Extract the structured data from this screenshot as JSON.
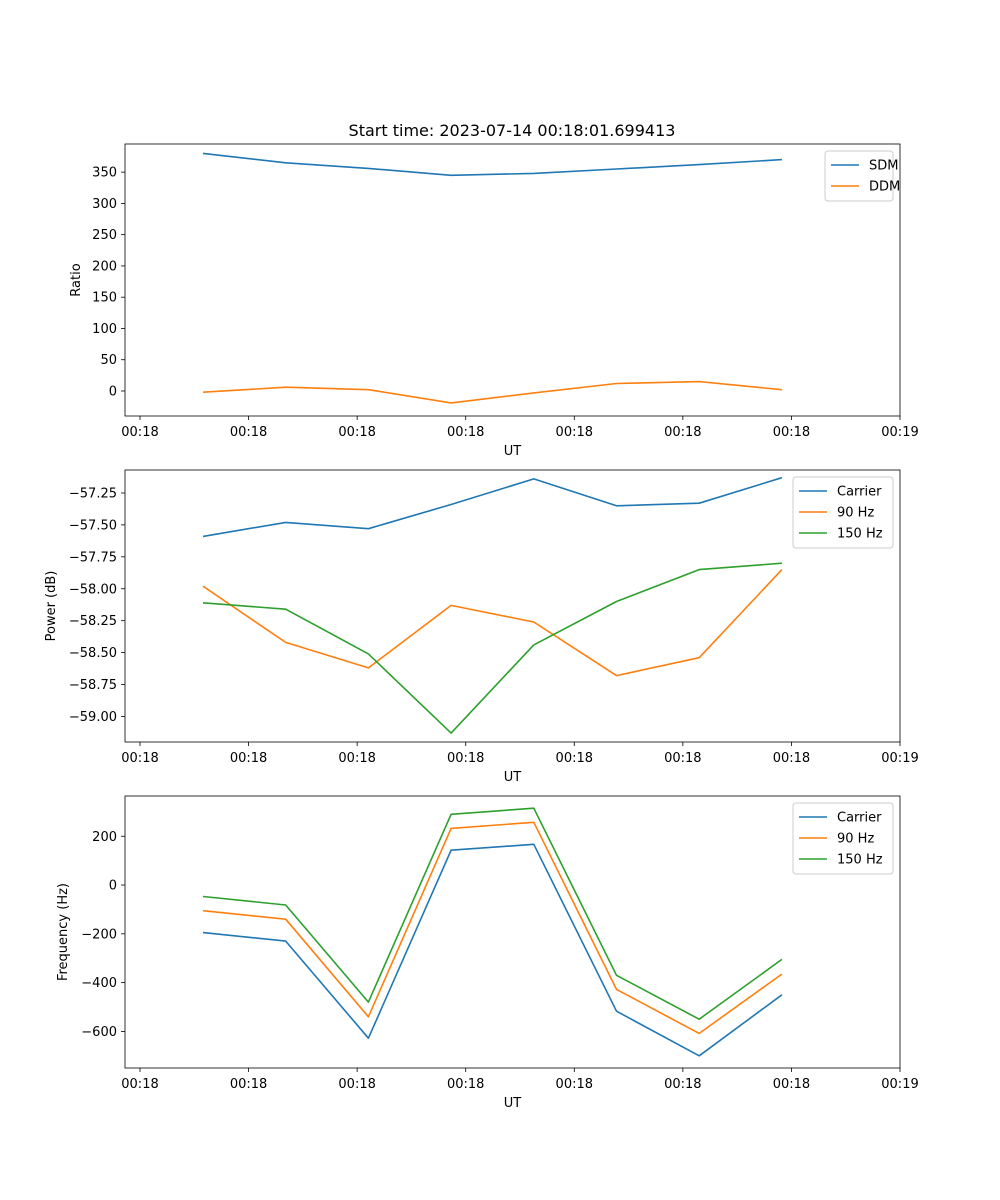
{
  "figure_title": "Start time: 2023-07-14 00:18:01.699413",
  "chart_data": [
    {
      "type": "line",
      "title": "Start time: 2023-07-14 00:18:01.699413",
      "xlabel": "UT",
      "ylabel": "Ratio",
      "x_tick_labels": [
        "00:18",
        "00:18",
        "00:18",
        "00:18",
        "00:18",
        "00:18",
        "00:18"
      ],
      "x_last_tick_label": "00:19",
      "x": [
        1,
        2,
        3,
        4,
        5,
        6,
        7,
        8
      ],
      "xlim": [
        0.2,
        9.5
      ],
      "ylim": [
        -40,
        395
      ],
      "yticks": [
        0,
        50,
        100,
        150,
        200,
        250,
        300,
        350
      ],
      "legend_position": "top-right",
      "series": [
        {
          "name": "SDM",
          "color": "#1f77b4",
          "values": [
            380,
            365,
            356,
            345,
            348,
            355,
            362,
            370
          ]
        },
        {
          "name": "DDM",
          "color": "#ff7f0e",
          "values": [
            -2,
            6,
            2,
            -19,
            -3,
            12,
            15,
            2
          ]
        }
      ]
    },
    {
      "type": "line",
      "title": "",
      "xlabel": "UT",
      "ylabel": "Power (dB)",
      "x_tick_labels": [
        "00:18",
        "00:18",
        "00:18",
        "00:18",
        "00:18",
        "00:18",
        "00:18"
      ],
      "x_last_tick_label": "00:19",
      "x": [
        1,
        2,
        3,
        4,
        5,
        6,
        7,
        8
      ],
      "xlim": [
        0.2,
        9.5
      ],
      "ylim": [
        -59.2,
        -57.07
      ],
      "yticks": [
        -59.0,
        -58.75,
        -58.5,
        -58.25,
        -58.0,
        -57.75,
        -57.5,
        -57.25
      ],
      "legend_position": "top-right",
      "series": [
        {
          "name": "Carrier",
          "color": "#1f77b4",
          "values": [
            -57.59,
            -57.48,
            -57.53,
            -57.34,
            -57.14,
            -57.35,
            -57.33,
            -57.13
          ]
        },
        {
          "name": "90 Hz",
          "color": "#ff7f0e",
          "values": [
            -57.98,
            -58.42,
            -58.62,
            -58.13,
            -58.26,
            -58.68,
            -58.54,
            -57.85
          ]
        },
        {
          "name": "150 Hz",
          "color": "#2ca02c",
          "values": [
            -58.11,
            -58.16,
            -58.51,
            -59.13,
            -58.44,
            -58.1,
            -57.85,
            -57.8
          ]
        }
      ]
    },
    {
      "type": "line",
      "title": "",
      "xlabel": "UT",
      "ylabel": "Frequency (Hz)",
      "x_tick_labels": [
        "00:18",
        "00:18",
        "00:18",
        "00:18",
        "00:18",
        "00:18",
        "00:18"
      ],
      "x_last_tick_label": "00:19",
      "x": [
        1,
        2,
        3,
        4,
        5,
        6,
        7,
        8
      ],
      "xlim": [
        0.2,
        9.5
      ],
      "ylim": [
        -750,
        365
      ],
      "yticks": [
        -600,
        -400,
        -200,
        0,
        200
      ],
      "legend_position": "top-right",
      "series": [
        {
          "name": "Carrier",
          "color": "#1f77b4",
          "values": [
            -195,
            -230,
            -628,
            143,
            167,
            -517,
            -700,
            -450
          ]
        },
        {
          "name": "90 Hz",
          "color": "#ff7f0e",
          "values": [
            -105,
            -140,
            -540,
            232,
            257,
            -428,
            -608,
            -365
          ]
        },
        {
          "name": "150 Hz",
          "color": "#2ca02c",
          "values": [
            -47,
            -82,
            -480,
            290,
            315,
            -370,
            -550,
            -305
          ]
        }
      ]
    }
  ]
}
